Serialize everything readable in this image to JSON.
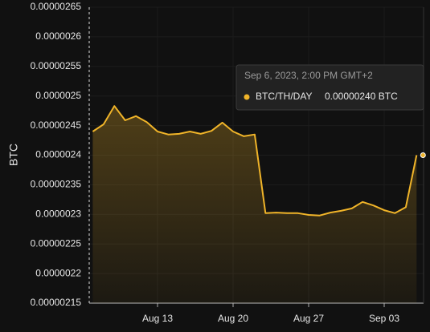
{
  "chart_data": {
    "type": "area",
    "y_label": "BTC",
    "categories": [
      null,
      null,
      null,
      null,
      null,
      null,
      "Aug 13",
      null,
      null,
      null,
      null,
      null,
      null,
      "Aug 20",
      null,
      null,
      null,
      null,
      null,
      null,
      "Aug 27",
      null,
      null,
      null,
      null,
      null,
      null,
      "Sep 03",
      null,
      null,
      null
    ],
    "series": [
      {
        "name": "BTC/TH/DAY",
        "color": "#f0b429",
        "values": [
          2.44e-06,
          2.452e-06,
          2.483e-06,
          2.459e-06,
          2.466e-06,
          2.456e-06,
          2.44e-06,
          2.435e-06,
          2.436e-06,
          2.44e-06,
          2.436e-06,
          2.441e-06,
          2.455e-06,
          2.44e-06,
          2.432e-06,
          2.435e-06,
          2.302e-06,
          2.303e-06,
          2.302e-06,
          2.302e-06,
          2.299e-06,
          2.298e-06,
          2.303e-06,
          2.306e-06,
          2.31e-06,
          2.321e-06,
          2.315e-06,
          2.307e-06,
          2.302e-06,
          2.312e-06,
          2.4e-06
        ],
        "value_labels": [
          null,
          null,
          null,
          null,
          null,
          null,
          null,
          null,
          null,
          null,
          null,
          null,
          null,
          null,
          null,
          null,
          null,
          null,
          null,
          null,
          null,
          null,
          null,
          null,
          null,
          null,
          null,
          null,
          null,
          null,
          "0.00000240 BTC"
        ]
      }
    ],
    "ylim": [
      2.15e-06,
      2.65e-06
    ],
    "yticks": [
      2.15e-06,
      2.2e-06,
      2.25e-06,
      2.3e-06,
      2.35e-06,
      2.4e-06,
      2.45e-06,
      2.5e-06,
      2.55e-06,
      2.6e-06,
      2.65e-06
    ],
    "grid": true,
    "tooltip": {
      "title": "Sep 6, 2023, 2:00 PM GMT+2"
    }
  }
}
